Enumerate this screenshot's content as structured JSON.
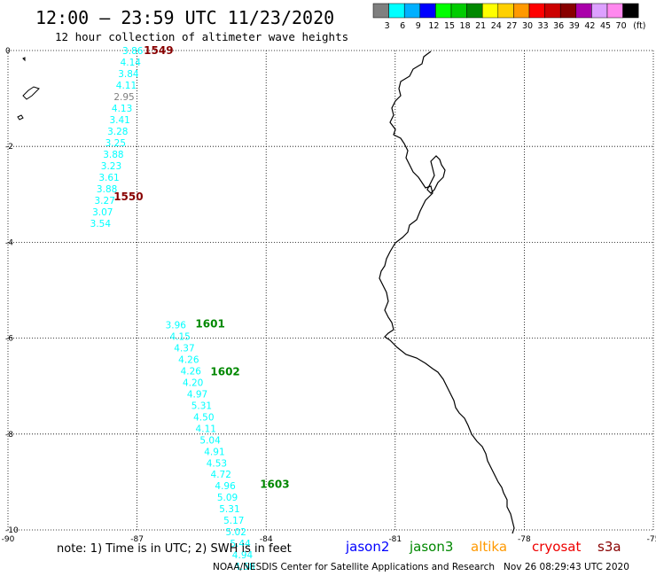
{
  "title": "12:00 – 23:59 UTC 11/23/2020",
  "subtitle": "12 hour collection of altimeter wave heights",
  "legend": {
    "unit": "(ft)",
    "bins": [
      {
        "label": "3",
        "color": "#7f7f7f"
      },
      {
        "label": "6",
        "color": "#00ffff"
      },
      {
        "label": "9",
        "color": "#00b0ff"
      },
      {
        "label": "12",
        "color": "#0000ff"
      },
      {
        "label": "15",
        "color": "#00ff00"
      },
      {
        "label": "18",
        "color": "#00cc00"
      },
      {
        "label": "21",
        "color": "#008800"
      },
      {
        "label": "24",
        "color": "#ffff00"
      },
      {
        "label": "27",
        "color": "#ffd000"
      },
      {
        "label": "30",
        "color": "#ff9900"
      },
      {
        "label": "33",
        "color": "#ff0000"
      },
      {
        "label": "36",
        "color": "#cc0000"
      },
      {
        "label": "39",
        "color": "#880000"
      },
      {
        "label": "42",
        "color": "#aa00aa"
      },
      {
        "label": "45",
        "color": "#dda0ff"
      },
      {
        "label": "70",
        "color": "#ff88ee"
      },
      {
        "label": "",
        "color": "#000000"
      }
    ]
  },
  "axes": {
    "lon_ticks": [
      "-90",
      "-87",
      "-84",
      "-81",
      "-78",
      "-75"
    ],
    "lat_ticks": [
      "0",
      "-2",
      "-4",
      "-6",
      "-8",
      "-10"
    ],
    "lon_range": [
      -90,
      -75
    ],
    "lat_range": [
      -10,
      0
    ]
  },
  "tracks": [
    {
      "time_labels": [
        {
          "text": "1549",
          "lon": -86.5,
          "lat": 0.0,
          "color": "#880000"
        },
        {
          "text": "1550",
          "lon": -87.2,
          "lat": -3.05,
          "color": "#880000"
        }
      ],
      "points": [
        {
          "value": "3.86",
          "lon": -87.1,
          "lat": 0.0,
          "color": "#00ffff"
        },
        {
          "value": "4.14",
          "lon": -87.15,
          "lat": -0.24,
          "color": "#00ffff"
        },
        {
          "value": "3.84",
          "lon": -87.2,
          "lat": -0.48,
          "color": "#00ffff"
        },
        {
          "value": "4.11",
          "lon": -87.25,
          "lat": -0.72,
          "color": "#00ffff"
        },
        {
          "value": "2.95",
          "lon": -87.3,
          "lat": -0.96,
          "color": "#7f7f7f"
        },
        {
          "value": "4.13",
          "lon": -87.35,
          "lat": -1.2,
          "color": "#00ffff"
        },
        {
          "value": "3.41",
          "lon": -87.4,
          "lat": -1.44,
          "color": "#00ffff"
        },
        {
          "value": "3.28",
          "lon": -87.45,
          "lat": -1.68,
          "color": "#00ffff"
        },
        {
          "value": "3.25",
          "lon": -87.5,
          "lat": -1.92,
          "color": "#00ffff"
        },
        {
          "value": "3.88",
          "lon": -87.55,
          "lat": -2.16,
          "color": "#00ffff"
        },
        {
          "value": "3.23",
          "lon": -87.6,
          "lat": -2.4,
          "color": "#00ffff"
        },
        {
          "value": "3.61",
          "lon": -87.65,
          "lat": -2.64,
          "color": "#00ffff"
        },
        {
          "value": "3.88",
          "lon": -87.7,
          "lat": -2.88,
          "color": "#00ffff"
        },
        {
          "value": "3.27",
          "lon": -87.75,
          "lat": -3.12,
          "color": "#00ffff"
        },
        {
          "value": "3.07",
          "lon": -87.8,
          "lat": -3.36,
          "color": "#00ffff"
        },
        {
          "value": "3.54",
          "lon": -87.85,
          "lat": -3.6,
          "color": "#00ffff"
        }
      ]
    },
    {
      "time_labels": [
        {
          "text": "1601",
          "lon": -85.3,
          "lat": -5.7,
          "color": "#008800"
        },
        {
          "text": "1602",
          "lon": -84.95,
          "lat": -6.7,
          "color": "#008800"
        },
        {
          "text": "1603",
          "lon": -83.8,
          "lat": -9.05,
          "color": "#008800"
        }
      ],
      "points": [
        {
          "value": "3.96",
          "lon": -86.1,
          "lat": -5.72,
          "color": "#00ffff"
        },
        {
          "value": "4.15",
          "lon": -86.0,
          "lat": -5.96,
          "color": "#00ffff"
        },
        {
          "value": "4.37",
          "lon": -85.9,
          "lat": -6.2,
          "color": "#00ffff"
        },
        {
          "value": "4.26",
          "lon": -85.8,
          "lat": -6.44,
          "color": "#00ffff"
        },
        {
          "value": "4.26",
          "lon": -85.75,
          "lat": -6.68,
          "color": "#00ffff"
        },
        {
          "value": "4.20",
          "lon": -85.7,
          "lat": -6.92,
          "color": "#00ffff"
        },
        {
          "value": "4.97",
          "lon": -85.6,
          "lat": -7.16,
          "color": "#00ffff"
        },
        {
          "value": "5.31",
          "lon": -85.5,
          "lat": -7.4,
          "color": "#00ffff"
        },
        {
          "value": "4.50",
          "lon": -85.45,
          "lat": -7.64,
          "color": "#00ffff"
        },
        {
          "value": "4.11",
          "lon": -85.4,
          "lat": -7.88,
          "color": "#00ffff"
        },
        {
          "value": "5.04",
          "lon": -85.3,
          "lat": -8.12,
          "color": "#00ffff"
        },
        {
          "value": "4.91",
          "lon": -85.2,
          "lat": -8.36,
          "color": "#00ffff"
        },
        {
          "value": "4.53",
          "lon": -85.15,
          "lat": -8.6,
          "color": "#00ffff"
        },
        {
          "value": "4.72",
          "lon": -85.05,
          "lat": -8.84,
          "color": "#00ffff"
        },
        {
          "value": "4.96",
          "lon": -84.95,
          "lat": -9.08,
          "color": "#00ffff"
        },
        {
          "value": "5.09",
          "lon": -84.9,
          "lat": -9.32,
          "color": "#00ffff"
        },
        {
          "value": "5.31",
          "lon": -84.85,
          "lat": -9.56,
          "color": "#00ffff"
        },
        {
          "value": "5.17",
          "lon": -84.75,
          "lat": -9.8,
          "color": "#00ffff"
        },
        {
          "value": "5.02",
          "lon": -84.7,
          "lat": -10.04,
          "color": "#00ffff"
        },
        {
          "value": "5.44",
          "lon": -84.6,
          "lat": -10.28,
          "color": "#00ffff"
        },
        {
          "value": "4.94",
          "lon": -84.55,
          "lat": -10.52,
          "color": "#00ffff"
        },
        {
          "value": "4.58",
          "lon": -84.5,
          "lat": -10.76,
          "color": "#00ffff"
        }
      ]
    }
  ],
  "note": "note: 1) Time is in UTC; 2) SWH is in feet",
  "satellites": [
    {
      "name": "jason2",
      "color": "#0000ff"
    },
    {
      "name": "jason3",
      "color": "#008800"
    },
    {
      "name": "altika",
      "color": "#ff9900"
    },
    {
      "name": "cryosat",
      "color": "#ee0000"
    },
    {
      "name": "s3a",
      "color": "#880000"
    }
  ],
  "credit": "NOAA/NESDIS Center for Satellite Applications and Research   Nov 26 08:29:43 UTC 2020"
}
